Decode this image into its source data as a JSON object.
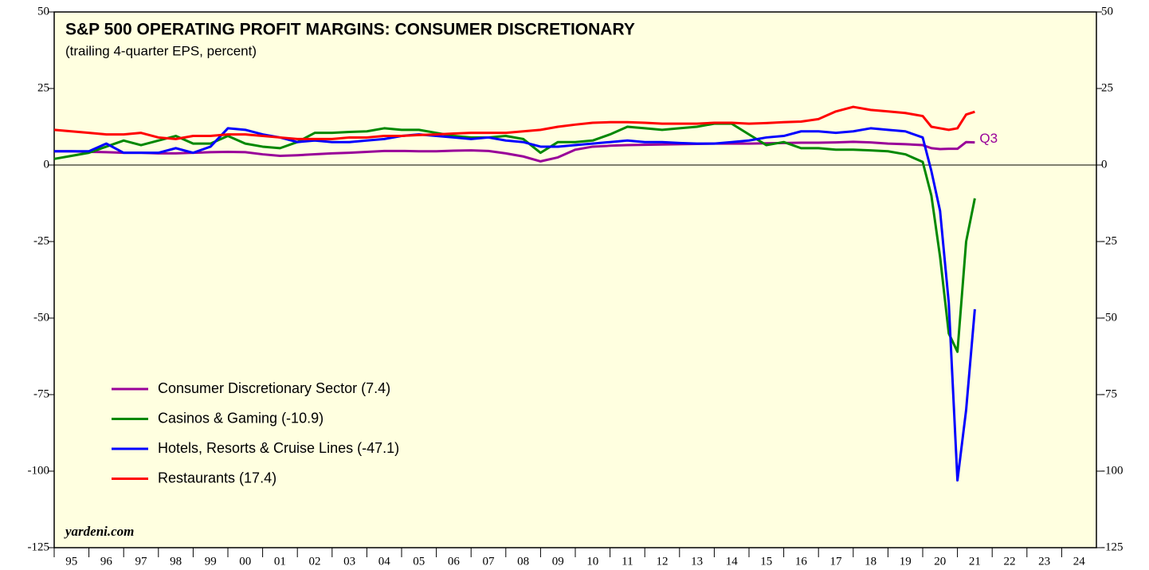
{
  "chart_data": {
    "type": "line",
    "title": "S&P 500 OPERATING PROFIT MARGINS: CONSUMER DISCRETIONARY",
    "subtitle": "(trailing 4-quarter EPS, percent)",
    "source": "yardeni.com",
    "annotation": {
      "text": "Q3",
      "x": 2021.5,
      "y": 7.4
    },
    "x": [
      1995.0,
      1995.5,
      1996.0,
      1996.5,
      1997.0,
      1997.5,
      1998.0,
      1998.5,
      1999.0,
      1999.5,
      2000.0,
      2000.5,
      2001.0,
      2001.5,
      2002.0,
      2002.5,
      2003.0,
      2003.5,
      2004.0,
      2004.5,
      2005.0,
      2005.5,
      2006.0,
      2006.5,
      2007.0,
      2007.5,
      2008.0,
      2008.5,
      2009.0,
      2009.5,
      2010.0,
      2010.5,
      2011.0,
      2011.5,
      2012.0,
      2012.5,
      2013.0,
      2013.5,
      2014.0,
      2014.5,
      2015.0,
      2015.5,
      2016.0,
      2016.5,
      2017.0,
      2017.5,
      2018.0,
      2018.5,
      2019.0,
      2019.5,
      2020.0,
      2020.25,
      2020.5,
      2020.75,
      2021.0,
      2021.25,
      2021.5
    ],
    "series": [
      {
        "name": "Consumer Discretionary Sector (7.4)",
        "color": "#990099",
        "values": [
          4.5,
          4.5,
          4.3,
          4.2,
          4.0,
          4.0,
          3.8,
          3.8,
          4.0,
          4.2,
          4.3,
          4.2,
          3.5,
          3.0,
          3.2,
          3.5,
          3.8,
          4.0,
          4.3,
          4.6,
          4.6,
          4.5,
          4.5,
          4.7,
          4.8,
          4.6,
          3.8,
          2.8,
          1.2,
          2.5,
          5.0,
          6.0,
          6.3,
          6.5,
          6.6,
          6.7,
          6.8,
          6.9,
          7.0,
          7.0,
          7.0,
          7.1,
          7.2,
          7.3,
          7.3,
          7.4,
          7.6,
          7.4,
          7.0,
          6.8,
          6.5,
          5.5,
          5.2,
          5.3,
          5.3,
          7.5,
          7.4
        ]
      },
      {
        "name": "Casinos & Gaming (-10.9)",
        "color": "#008800",
        "values": [
          2.0,
          3.0,
          4.0,
          6.0,
          8.0,
          6.5,
          8.0,
          9.5,
          7.0,
          7.0,
          9.5,
          7.0,
          6.0,
          5.5,
          7.5,
          10.5,
          10.5,
          10.8,
          11.0,
          12.0,
          11.5,
          11.5,
          10.5,
          9.5,
          9.0,
          9.0,
          9.5,
          8.5,
          4.0,
          7.5,
          7.5,
          8.0,
          10.0,
          12.5,
          12.0,
          11.5,
          12.0,
          12.5,
          13.5,
          13.5,
          10.0,
          6.5,
          7.5,
          5.5,
          5.5,
          5.0,
          5.0,
          4.8,
          4.5,
          3.5,
          1.0,
          -10,
          -30,
          -55,
          -61,
          -25,
          -10.9
        ]
      },
      {
        "name": "Hotels, Resorts & Cruise Lines (-47.1)",
        "color": "#0000ff",
        "values": [
          4.5,
          4.5,
          4.5,
          7.0,
          4.0,
          4.0,
          4.0,
          5.5,
          4.0,
          6.0,
          12.0,
          11.5,
          10.0,
          9.0,
          7.5,
          8.0,
          7.5,
          7.5,
          8.0,
          8.5,
          9.5,
          10.0,
          9.5,
          9.0,
          8.5,
          9.0,
          8.0,
          7.5,
          6.0,
          6.0,
          6.5,
          7.0,
          7.5,
          8.0,
          7.5,
          7.5,
          7.2,
          7.0,
          7.0,
          7.5,
          8.0,
          9.0,
          9.5,
          11.0,
          11.0,
          10.5,
          11.0,
          12.0,
          11.5,
          11.0,
          9.0,
          -2,
          -15,
          -45,
          -103,
          -80,
          -47.1
        ]
      },
      {
        "name": "Restaurants (17.4)",
        "color": "#ff0000",
        "values": [
          11.5,
          11.0,
          10.5,
          10.0,
          10.0,
          10.5,
          9.0,
          8.5,
          9.5,
          9.5,
          10.0,
          10.0,
          9.5,
          9.0,
          8.5,
          8.5,
          8.5,
          9.0,
          9.0,
          9.5,
          9.5,
          9.8,
          10.0,
          10.3,
          10.5,
          10.5,
          10.5,
          11.0,
          11.5,
          12.5,
          13.2,
          13.8,
          14.0,
          14.0,
          13.8,
          13.5,
          13.5,
          13.5,
          13.8,
          13.8,
          13.5,
          13.7,
          14.0,
          14.2,
          15.0,
          17.5,
          19.0,
          18.0,
          17.5,
          17.0,
          16.0,
          12.5,
          12.0,
          11.5,
          12.0,
          16.5,
          17.4
        ]
      }
    ],
    "xlim": [
      1995,
      2025
    ],
    "xticks": [
      {
        "value": 1995.5,
        "label": "95"
      },
      {
        "value": 1996.5,
        "label": "96"
      },
      {
        "value": 1997.5,
        "label": "97"
      },
      {
        "value": 1998.5,
        "label": "98"
      },
      {
        "value": 1999.5,
        "label": "99"
      },
      {
        "value": 2000.5,
        "label": "00"
      },
      {
        "value": 2001.5,
        "label": "01"
      },
      {
        "value": 2002.5,
        "label": "02"
      },
      {
        "value": 2003.5,
        "label": "03"
      },
      {
        "value": 2004.5,
        "label": "04"
      },
      {
        "value": 2005.5,
        "label": "05"
      },
      {
        "value": 2006.5,
        "label": "06"
      },
      {
        "value": 2007.5,
        "label": "07"
      },
      {
        "value": 2008.5,
        "label": "08"
      },
      {
        "value": 2009.5,
        "label": "09"
      },
      {
        "value": 2010.5,
        "label": "10"
      },
      {
        "value": 2011.5,
        "label": "11"
      },
      {
        "value": 2012.5,
        "label": "12"
      },
      {
        "value": 2013.5,
        "label": "13"
      },
      {
        "value": 2014.5,
        "label": "14"
      },
      {
        "value": 2015.5,
        "label": "15"
      },
      {
        "value": 2016.5,
        "label": "16"
      },
      {
        "value": 2017.5,
        "label": "17"
      },
      {
        "value": 2018.5,
        "label": "18"
      },
      {
        "value": 2019.5,
        "label": "19"
      },
      {
        "value": 2020.5,
        "label": "20"
      },
      {
        "value": 2021.5,
        "label": "21"
      },
      {
        "value": 2022.5,
        "label": "22"
      },
      {
        "value": 2023.5,
        "label": "23"
      },
      {
        "value": 2024.5,
        "label": "24"
      }
    ],
    "ylim": [
      -125,
      50
    ],
    "yticks": [
      50,
      25,
      0,
      -25,
      -50,
      -75,
      -100,
      -125
    ],
    "hline": 0,
    "background": "#ffffe0",
    "legend": "lower left"
  }
}
